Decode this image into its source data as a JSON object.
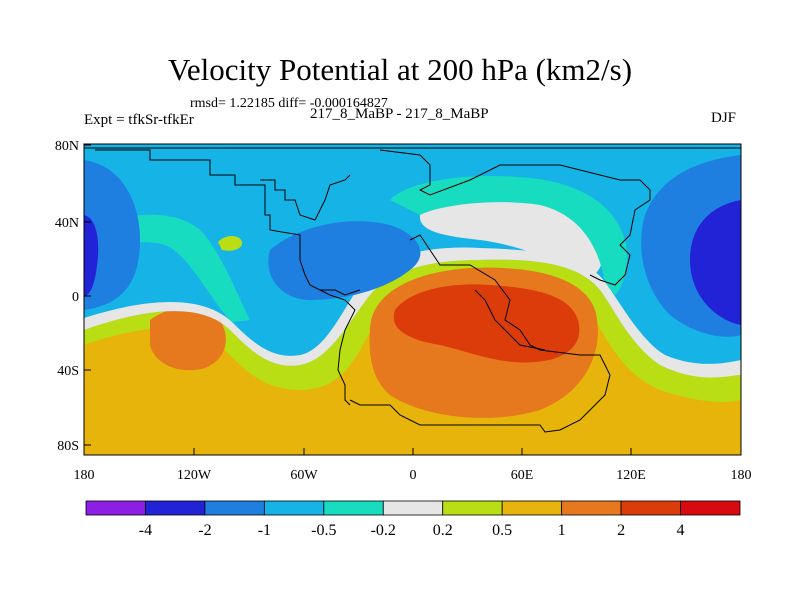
{
  "figure": {
    "title": "Velocity Potential at 200 hPa (km2/s)",
    "stats": "rmsd= 1.22185 diff= -0.000164827",
    "left_label": "Expt = tfkSr-tfkEr",
    "center_label": "217_8_MaBP - 217_8_MaBP",
    "right_label": "DJF"
  },
  "chart_data": {
    "type": "filled-contour-map",
    "variable": "velocity potential difference at 200 hPa",
    "units": "km2/s",
    "x_axis": {
      "range": [
        -180,
        180
      ],
      "ticks": [
        "180",
        "120W",
        "60W",
        "0",
        "60E",
        "120E",
        "180"
      ]
    },
    "y_axis": {
      "range": [
        -90,
        90
      ],
      "ticks": [
        "80N",
        "40N",
        "0",
        "40S",
        "80S"
      ]
    },
    "colorbar": {
      "levels": [
        "-4",
        "-2",
        "-1",
        "-0.5",
        "-0.2",
        "0.2",
        "0.5",
        "1",
        "2",
        "4"
      ],
      "colors": [
        "#8c1ee6",
        "#2222d6",
        "#1e7fe0",
        "#16b4e6",
        "#18dcc0",
        "#e6e6e6",
        "#b9de14",
        "#e6b40a",
        "#e6781e",
        "#dc3c0a",
        "#d80a10"
      ]
    },
    "field_colors": {
      "c_lt_m4": "#8c1ee6",
      "c_m4_m2": "#2222d6",
      "c_m2_m1": "#1e7fe0",
      "c_m1_m05": "#16b4e6",
      "c_m05_m02": "#18dcc0",
      "c_m02_02": "#e6e6e6",
      "c_02_05": "#b9de14",
      "c_05_1": "#e6b40a",
      "c_1_2": "#e6781e",
      "c_2_4": "#dc3c0a",
      "c_gt_4": "#d80a10"
    },
    "regions": [
      {
        "id": "north-cool-background",
        "level": "-1 to -0.5"
      },
      {
        "id": "east-pacific-minimum",
        "level": "-4 to -2"
      },
      {
        "id": "west-pacific-minimum",
        "level": "-4 to -2"
      },
      {
        "id": "atlantic-north-band",
        "level": "-2 to -1"
      },
      {
        "id": "southern-warm-background",
        "level": "0.5 to 1"
      },
      {
        "id": "south-pacific-maximum",
        "level": "1 to 2"
      },
      {
        "id": "africa-indian-ocean-maximum",
        "level": "2 to 4"
      }
    ]
  }
}
